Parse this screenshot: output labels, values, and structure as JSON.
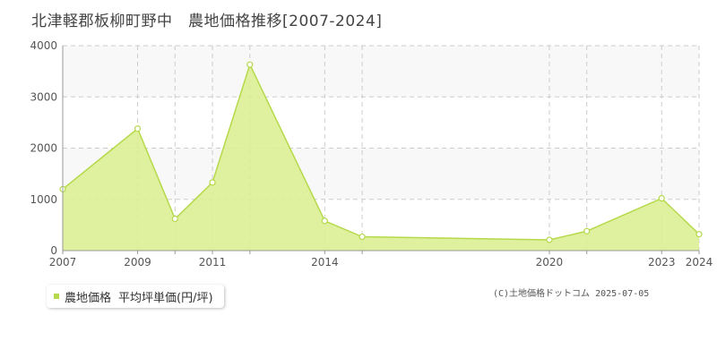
{
  "title": "北津軽郡板柳町野中　農地価格推移[2007-2024]",
  "legend": {
    "series_label": "農地価格",
    "unit_label": "平均坪単価(円/坪)"
  },
  "credit": "(C)土地価格ドットコム 2025-07-05",
  "colors": {
    "fill": "#dcee95",
    "line": "#b5d94a",
    "band": "#f8f8f8",
    "grid": "#cccccc",
    "axis": "#999999"
  },
  "chart_data": {
    "type": "area",
    "title": "",
    "xlabel": "",
    "ylabel": "",
    "x": [
      2007,
      2009,
      2010,
      2011,
      2012,
      2014,
      2015,
      2020,
      2021,
      2023,
      2024
    ],
    "x_tick_labels": [
      2007,
      2009,
      2011,
      2014,
      2020,
      2023,
      2024
    ],
    "x_tick_marks": [
      2007,
      2009,
      2010,
      2011,
      2012,
      2014,
      2015,
      2020,
      2021,
      2023,
      2024
    ],
    "y_ticks": [
      0,
      1000,
      2000,
      3000,
      4000
    ],
    "ylim": [
      0,
      4000
    ],
    "series": [
      {
        "name": "農地価格",
        "values": [
          1200,
          2380,
          620,
          1330,
          3630,
          580,
          270,
          210,
          380,
          1020,
          320
        ]
      }
    ],
    "grid": true
  }
}
